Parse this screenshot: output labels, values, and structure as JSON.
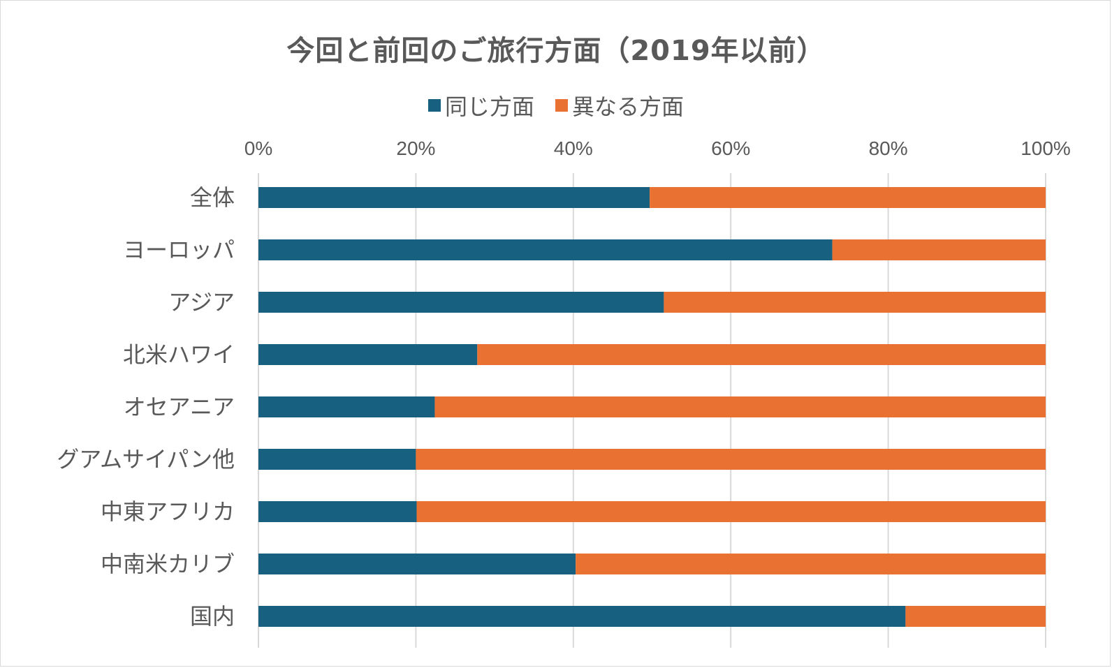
{
  "chart_data": {
    "type": "bar",
    "orientation": "horizontal",
    "stacked": "percent",
    "title": "今回と前回のご旅行方面（2019年以前）",
    "xlabel": "",
    "ylabel": "",
    "xlim": [
      0,
      100
    ],
    "x_ticks": [
      "0%",
      "20%",
      "40%",
      "60%",
      "80%",
      "100%"
    ],
    "x_tick_values": [
      0,
      20,
      40,
      60,
      80,
      100
    ],
    "x_axis_position": "top",
    "grid": true,
    "legend_position": "top",
    "categories": [
      "全体",
      "ヨーロッパ",
      "アジア",
      "北米ハワイ",
      "オセアニア",
      "グアムサイパン他",
      "中東アフリカ",
      "中南米カリブ",
      "国内"
    ],
    "series": [
      {
        "name": "同じ方面",
        "color": "#17607f",
        "values": [
          49.7,
          72.9,
          51.5,
          27.8,
          22.4,
          20.0,
          20.1,
          40.3,
          82.2
        ]
      },
      {
        "name": "異なる方面",
        "color": "#e97132",
        "values": [
          50.3,
          27.1,
          48.5,
          72.2,
          77.6,
          80.0,
          79.9,
          59.7,
          17.8
        ]
      }
    ]
  }
}
